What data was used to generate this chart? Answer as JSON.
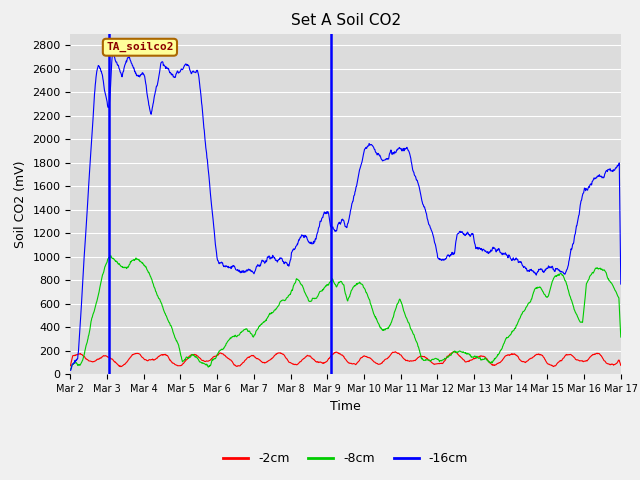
{
  "title": "Set A Soil CO2",
  "ylabel": "Soil CO2 (mV)",
  "xlabel": "Time",
  "ylim": [
    0,
    2900
  ],
  "annotation_text": "TA_soilco2",
  "line_colors": {
    "2cm": "#ff0000",
    "8cm": "#00cc00",
    "16cm": "#0000ff"
  },
  "legend_labels": [
    "-2cm",
    "-8cm",
    "-16cm"
  ],
  "vlines": [
    1.05,
    7.1
  ],
  "background_color": "#dcdcdc",
  "grid_color": "#ffffff",
  "title_fontsize": 11,
  "axis_fontsize": 9,
  "tick_fontsize": 8,
  "legend_fontsize": 9
}
